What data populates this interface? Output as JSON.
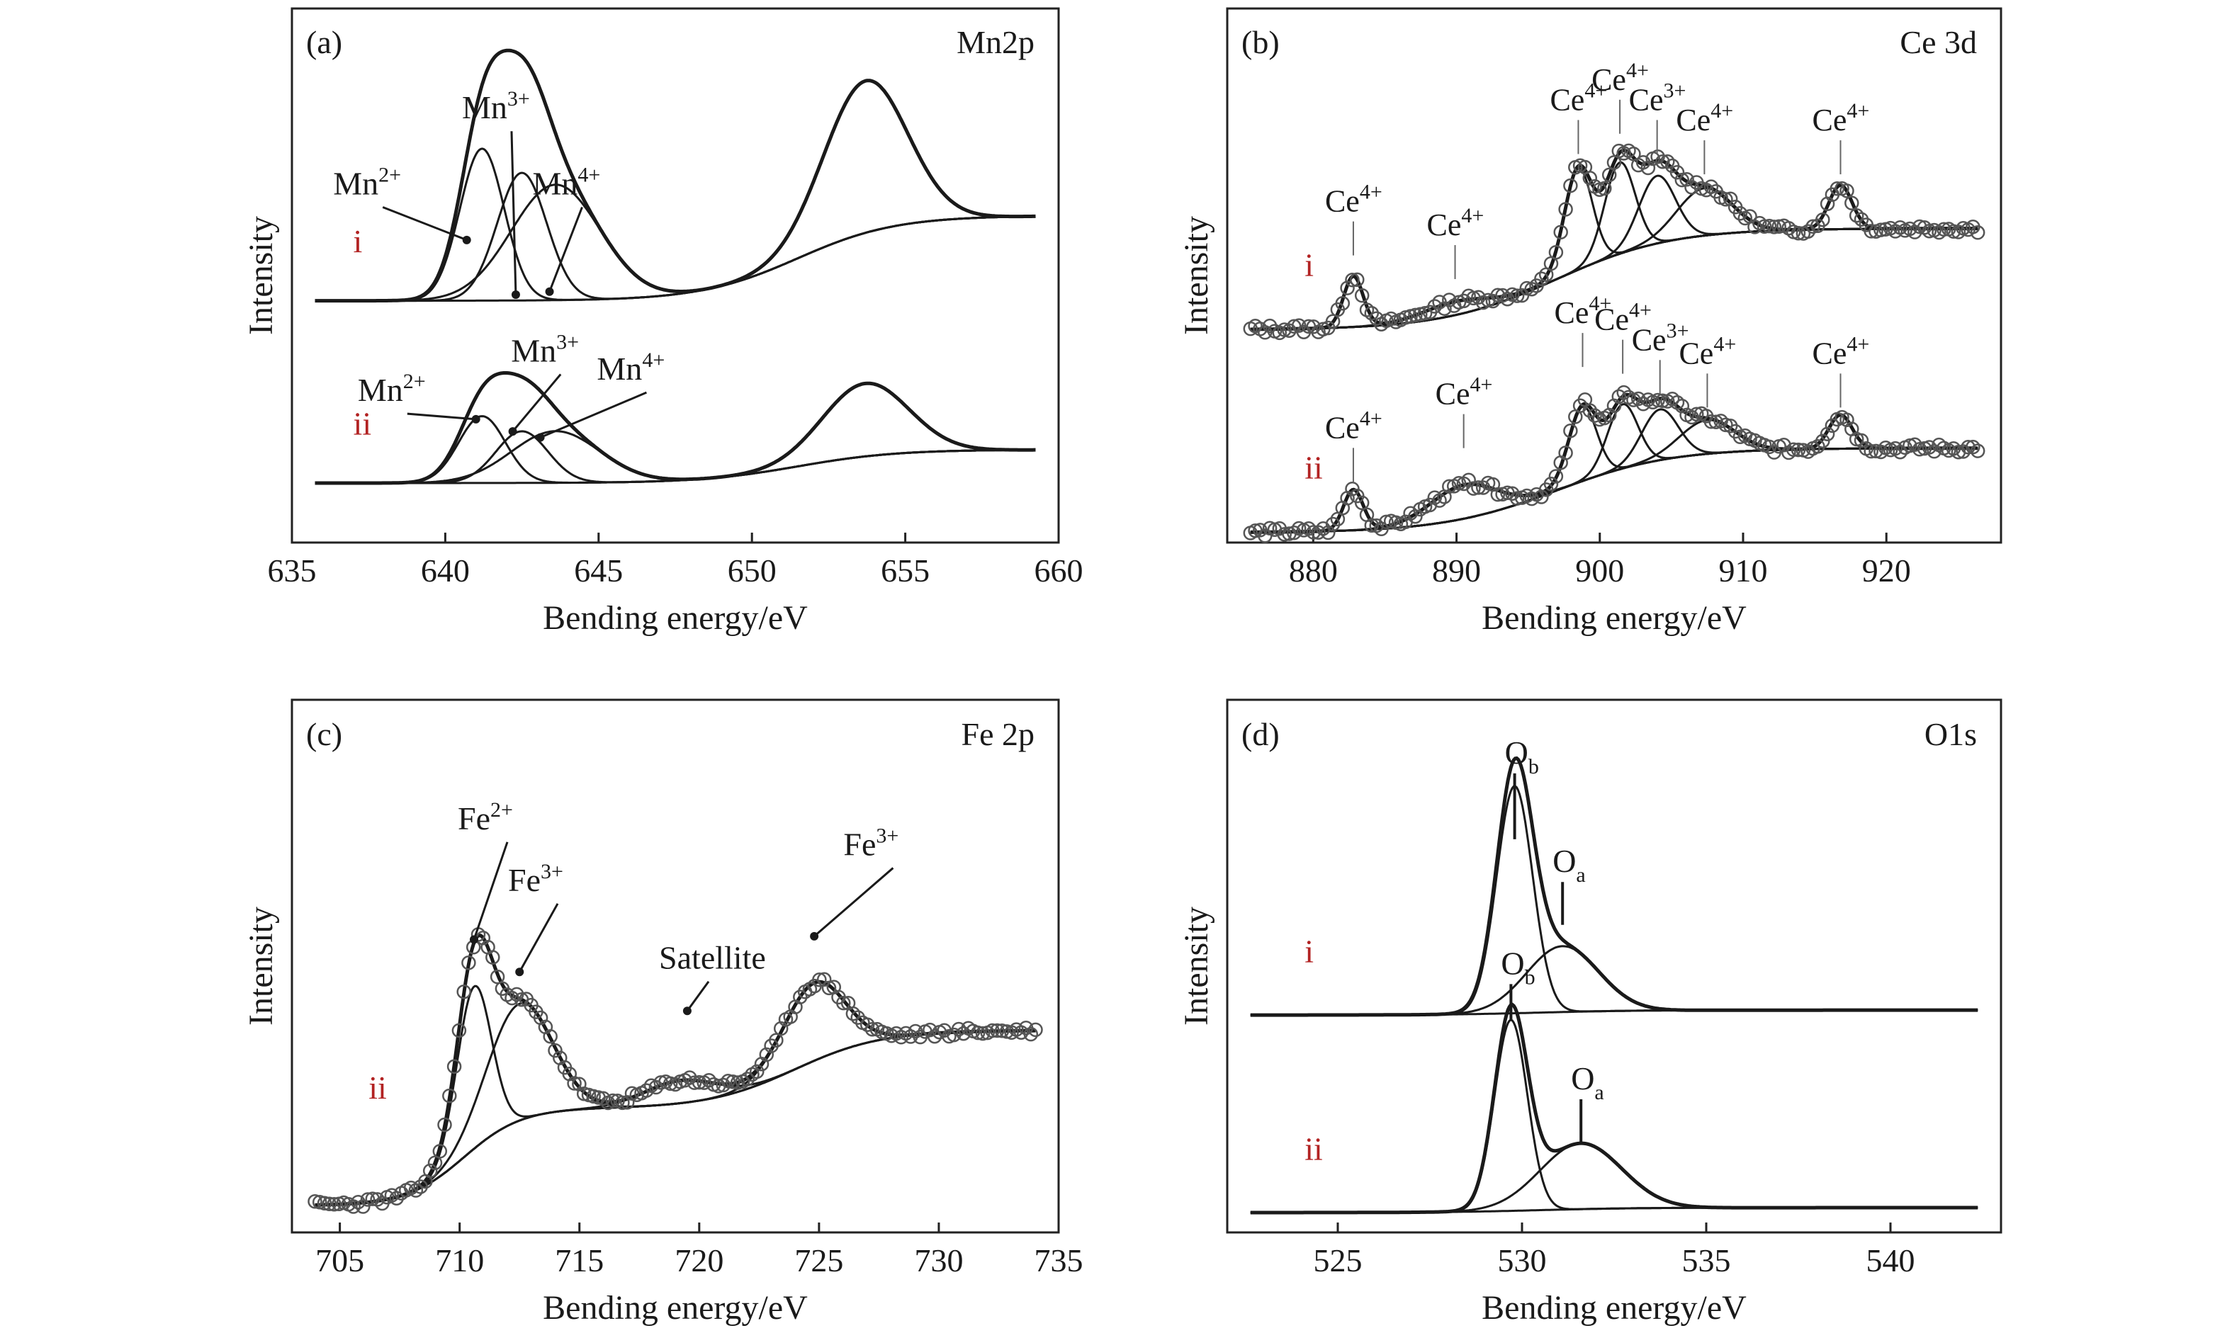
{
  "figure": {
    "colors": {
      "ink": "#1a1a1a",
      "series_label": "#b22222",
      "marker_edge": "#555555",
      "frame": "#222222"
    }
  },
  "chart_data": [
    {
      "panel": "(a)",
      "type": "line",
      "title": "Mn2p",
      "xlabel": "Bending energy/eV",
      "ylabel": "Intensity",
      "xlim": [
        635,
        660
      ],
      "xticks": [
        635,
        640,
        645,
        650,
        655,
        660
      ],
      "y_scale": "arbitrary",
      "grid": false,
      "markers": false,
      "series": [
        {
          "name": "i",
          "offset": 0.6,
          "background": {
            "pre": 0.02,
            "post": 0.0,
            "center": 639.5,
            "width": 0.9,
            "post2": 0.0,
            "center2": 0,
            "width2": 1
          },
          "background2": {
            "step_level": 0.28,
            "step_center": 651.5,
            "step_width": 1.6
          },
          "envelope": true,
          "components": [
            {
              "label": "Mn",
              "sup": "2+",
              "pos": 641.2,
              "fwhm": 1.7,
              "amp": 0.5
            },
            {
              "label": "Mn",
              "sup": "3+",
              "pos": 642.5,
              "fwhm": 1.9,
              "amp": 0.42
            },
            {
              "label": "Mn",
              "sup": "4+",
              "pos": 643.6,
              "fwhm": 3.4,
              "amp": 0.38
            }
          ],
          "extra_peaks": [
            {
              "pos": 653.7,
              "fwhm": 3.2,
              "amp": 0.5
            }
          ],
          "annotations": [
            {
              "label": "Mn",
              "sup": "2+",
              "tx": 637.5,
              "ty": 0.95,
              "ax": 640.7,
              "ay": 0.8
            },
            {
              "label": "Mn",
              "sup": "3+",
              "tx": 641.7,
              "ty": 1.2,
              "ax": 642.3,
              "ay": 0.62
            },
            {
              "label": "Mn",
              "sup": "4+",
              "tx": 644.0,
              "ty": 0.95,
              "ax": 643.4,
              "ay": 0.63
            }
          ]
        },
        {
          "name": "ii",
          "offset": 0.0,
          "background": {
            "pre": 0.0,
            "post": 0.0,
            "center": 640,
            "width": 1
          },
          "background2": {
            "step_level": 0.11,
            "step_center": 651.5,
            "step_width": 1.6
          },
          "envelope": true,
          "components": [
            {
              "label": "Mn",
              "sup": "2+",
              "pos": 641.2,
              "fwhm": 1.8,
              "amp": 0.22
            },
            {
              "label": "Mn",
              "sup": "3+",
              "pos": 642.5,
              "fwhm": 2.0,
              "amp": 0.17
            },
            {
              "label": "Mn",
              "sup": "4+",
              "pos": 643.6,
              "fwhm": 3.4,
              "amp": 0.17
            }
          ],
          "extra_peaks": [
            {
              "pos": 653.7,
              "fwhm": 3.3,
              "amp": 0.24
            }
          ],
          "annotations": [
            {
              "label": "Mn",
              "sup": "2+",
              "tx": 638.3,
              "ty": 0.27,
              "ax": 641.0,
              "ay": 0.21
            },
            {
              "label": "Mn",
              "sup": "3+",
              "tx": 643.3,
              "ty": 0.4,
              "ax": 642.2,
              "ay": 0.17
            },
            {
              "label": "Mn",
              "sup": "4+",
              "tx": 646.1,
              "ty": 0.34,
              "ax": 643.1,
              "ay": 0.15
            }
          ]
        }
      ]
    },
    {
      "panel": "(b)",
      "type": "scatter",
      "title": "Ce 3d",
      "xlabel": "Bending energy/eV",
      "ylabel": "Intensity",
      "xlim": [
        874,
        928
      ],
      "xticks": [
        880,
        890,
        900,
        910,
        920
      ],
      "y_scale": "arbitrary",
      "grid": false,
      "markers": true,
      "series": [
        {
          "name": "i",
          "offset": 0.6,
          "background2": {
            "step_level": 0.3,
            "step_center": 897,
            "step_width": 4.0
          },
          "envelope": true,
          "components": [
            {
              "label": "Ce",
              "sup": "4+",
              "pos": 882.8,
              "fwhm": 1.6,
              "amp": 0.15
            },
            {
              "label": "Ce",
              "sup": "4+",
              "pos": 889.9,
              "fwhm": 5.5,
              "amp": 0.04
            },
            {
              "label": "Ce",
              "sup": "4+",
              "pos": 898.5,
              "fwhm": 2.3,
              "amp": 0.3
            },
            {
              "label": "Ce",
              "sup": "4+",
              "pos": 901.4,
              "fwhm": 2.5,
              "amp": 0.27
            },
            {
              "label": "Ce",
              "sup": "3+",
              "pos": 904.0,
              "fwhm": 3.0,
              "amp": 0.2
            },
            {
              "label": "Ce",
              "sup": "4+",
              "pos": 907.3,
              "fwhm": 4.5,
              "amp": 0.14
            },
            {
              "label": "Ce",
              "sup": "4+",
              "pos": 916.8,
              "fwhm": 1.9,
              "amp": 0.13
            }
          ],
          "labels": [
            {
              "label": "Ce",
              "sup": "4+",
              "x": 882.8,
              "y": 0.95
            },
            {
              "label": "Ce",
              "sup": "4+",
              "x": 889.9,
              "y": 0.88
            },
            {
              "label": "Ce",
              "sup": "4+",
              "x": 898.5,
              "y": 1.25
            },
            {
              "label": "Ce",
              "sup": "4+",
              "x": 901.4,
              "y": 1.31
            },
            {
              "label": "Ce",
              "sup": "3+",
              "x": 904.0,
              "y": 1.25
            },
            {
              "label": "Ce",
              "sup": "4+",
              "x": 907.3,
              "y": 1.19
            },
            {
              "label": "Ce",
              "sup": "4+",
              "x": 916.8,
              "y": 1.19
            }
          ]
        },
        {
          "name": "ii",
          "offset": 0.0,
          "background2": {
            "step_level": 0.25,
            "step_center": 897,
            "step_width": 4.0
          },
          "envelope": true,
          "components": [
            {
              "label": "Ce",
              "sup": "4+",
              "pos": 882.8,
              "fwhm": 1.6,
              "amp": 0.12
            },
            {
              "label": "Ce",
              "sup": "4+",
              "pos": 890.5,
              "fwhm": 5.5,
              "amp": 0.1
            },
            {
              "label": "Ce",
              "sup": "4+",
              "pos": 898.8,
              "fwhm": 2.3,
              "amp": 0.22
            },
            {
              "label": "Ce",
              "sup": "4+",
              "pos": 901.6,
              "fwhm": 2.5,
              "amp": 0.19
            },
            {
              "label": "Ce",
              "sup": "3+",
              "pos": 904.2,
              "fwhm": 3.0,
              "amp": 0.15
            },
            {
              "label": "Ce",
              "sup": "4+",
              "pos": 907.5,
              "fwhm": 4.5,
              "amp": 0.1
            },
            {
              "label": "Ce",
              "sup": "4+",
              "pos": 916.8,
              "fwhm": 1.9,
              "amp": 0.1
            }
          ],
          "labels": [
            {
              "label": "Ce",
              "sup": "4+",
              "x": 882.8,
              "y": 0.28
            },
            {
              "label": "Ce",
              "sup": "4+",
              "x": 890.5,
              "y": 0.38
            },
            {
              "label": "Ce",
              "sup": "4+",
              "x": 898.8,
              "y": 0.62
            },
            {
              "label": "Ce",
              "sup": "4+",
              "x": 901.6,
              "y": 0.6
            },
            {
              "label": "Ce",
              "sup": "3+",
              "x": 904.2,
              "y": 0.54
            },
            {
              "label": "Ce",
              "sup": "4+",
              "x": 907.5,
              "y": 0.5
            },
            {
              "label": "Ce",
              "sup": "4+",
              "x": 916.8,
              "y": 0.5
            }
          ]
        }
      ]
    },
    {
      "panel": "(c)",
      "type": "scatter",
      "title": "Fe 2p",
      "xlabel": "Bending energy/eV",
      "ylabel": "Intensity",
      "xlim": [
        703,
        735
      ],
      "xticks": [
        705,
        710,
        715,
        720,
        725,
        730,
        735
      ],
      "y_scale": "arbitrary",
      "grid": false,
      "markers": true,
      "series": [
        {
          "name": "ii",
          "offset": 0.0,
          "background2": {
            "step_level": 0.3,
            "step_center": 710.2,
            "step_width": 1.2,
            "step2_level": 0.24,
            "step2_center": 724.0,
            "step2_width": 1.8
          },
          "envelope": true,
          "components": [
            {
              "label": "Fe",
              "sup": "2+",
              "pos": 710.6,
              "fwhm": 1.7,
              "amp": 0.5
            },
            {
              "label": "Fe",
              "sup": "3+",
              "pos": 712.5,
              "fwhm": 3.2,
              "amp": 0.36
            },
            {
              "label": "Satellite",
              "sup": "",
              "pos": 719.2,
              "fwhm": 3.5,
              "amp": 0.07
            },
            {
              "label": "Fe",
              "sup": "3+",
              "pos": 724.8,
              "fwhm": 3.0,
              "amp": 0.24
            }
          ],
          "annotations": [
            {
              "label": "Fe",
              "sup": "2+",
              "tx": 711.4,
              "ty": 1.16,
              "ax": 710.6,
              "ay": 0.82
            },
            {
              "label": "Fe",
              "sup": "3+",
              "tx": 713.5,
              "ty": 0.97,
              "ax": 712.5,
              "ay": 0.72
            },
            {
              "label": "Fe",
              "sup": "3+",
              "tx": 727.5,
              "ty": 1.08,
              "ax": 724.8,
              "ay": 0.83
            },
            {
              "label": "Satellite",
              "sup": "",
              "tx": 719.8,
              "ty": 0.73,
              "ax": 719.5,
              "ay": 0.6
            }
          ]
        }
      ]
    },
    {
      "panel": "(d)",
      "type": "line",
      "title": "O1s",
      "xlabel": "Bending energy/eV",
      "ylabel": "Intensity",
      "xlim": [
        522,
        543
      ],
      "xticks": [
        525,
        530,
        535,
        540
      ],
      "y_scale": "arbitrary",
      "grid": false,
      "markers": false,
      "series": [
        {
          "name": "i",
          "offset": 0.6,
          "background2": {
            "step_level": 0.015,
            "step_center": 530.5,
            "step_width": 1.3
          },
          "envelope": true,
          "components": [
            {
              "label": "O",
              "sub": "b",
              "pos": 529.8,
              "fwhm": 1.15,
              "amp": 0.69
            },
            {
              "label": "O",
              "sub": "a",
              "pos": 531.1,
              "fwhm": 2.3,
              "amp": 0.2
            }
          ],
          "marks": [
            {
              "label": "O",
              "sub": "b",
              "x": 529.8,
              "y": 1.36,
              "line_to": 1.22
            },
            {
              "label": "O",
              "sub": "a",
              "x": 531.1,
              "y": 1.03,
              "line_to": 0.96
            }
          ]
        },
        {
          "name": "ii",
          "offset": 0.0,
          "background2": {
            "step_level": 0.015,
            "step_center": 530.5,
            "step_width": 1.3
          },
          "envelope": true,
          "components": [
            {
              "label": "O",
              "sub": "b",
              "pos": 529.7,
              "fwhm": 1.05,
              "amp": 0.58
            },
            {
              "label": "O",
              "sub": "a",
              "pos": 531.6,
              "fwhm": 2.6,
              "amp": 0.2
            }
          ],
          "marks": [
            {
              "label": "O",
              "sub": "b",
              "x": 529.7,
              "y": 0.72,
              "line_to": 0.67
            },
            {
              "label": "O",
              "sub": "a",
              "x": 531.6,
              "y": 0.37,
              "line_to": 0.3
            }
          ]
        }
      ]
    }
  ]
}
